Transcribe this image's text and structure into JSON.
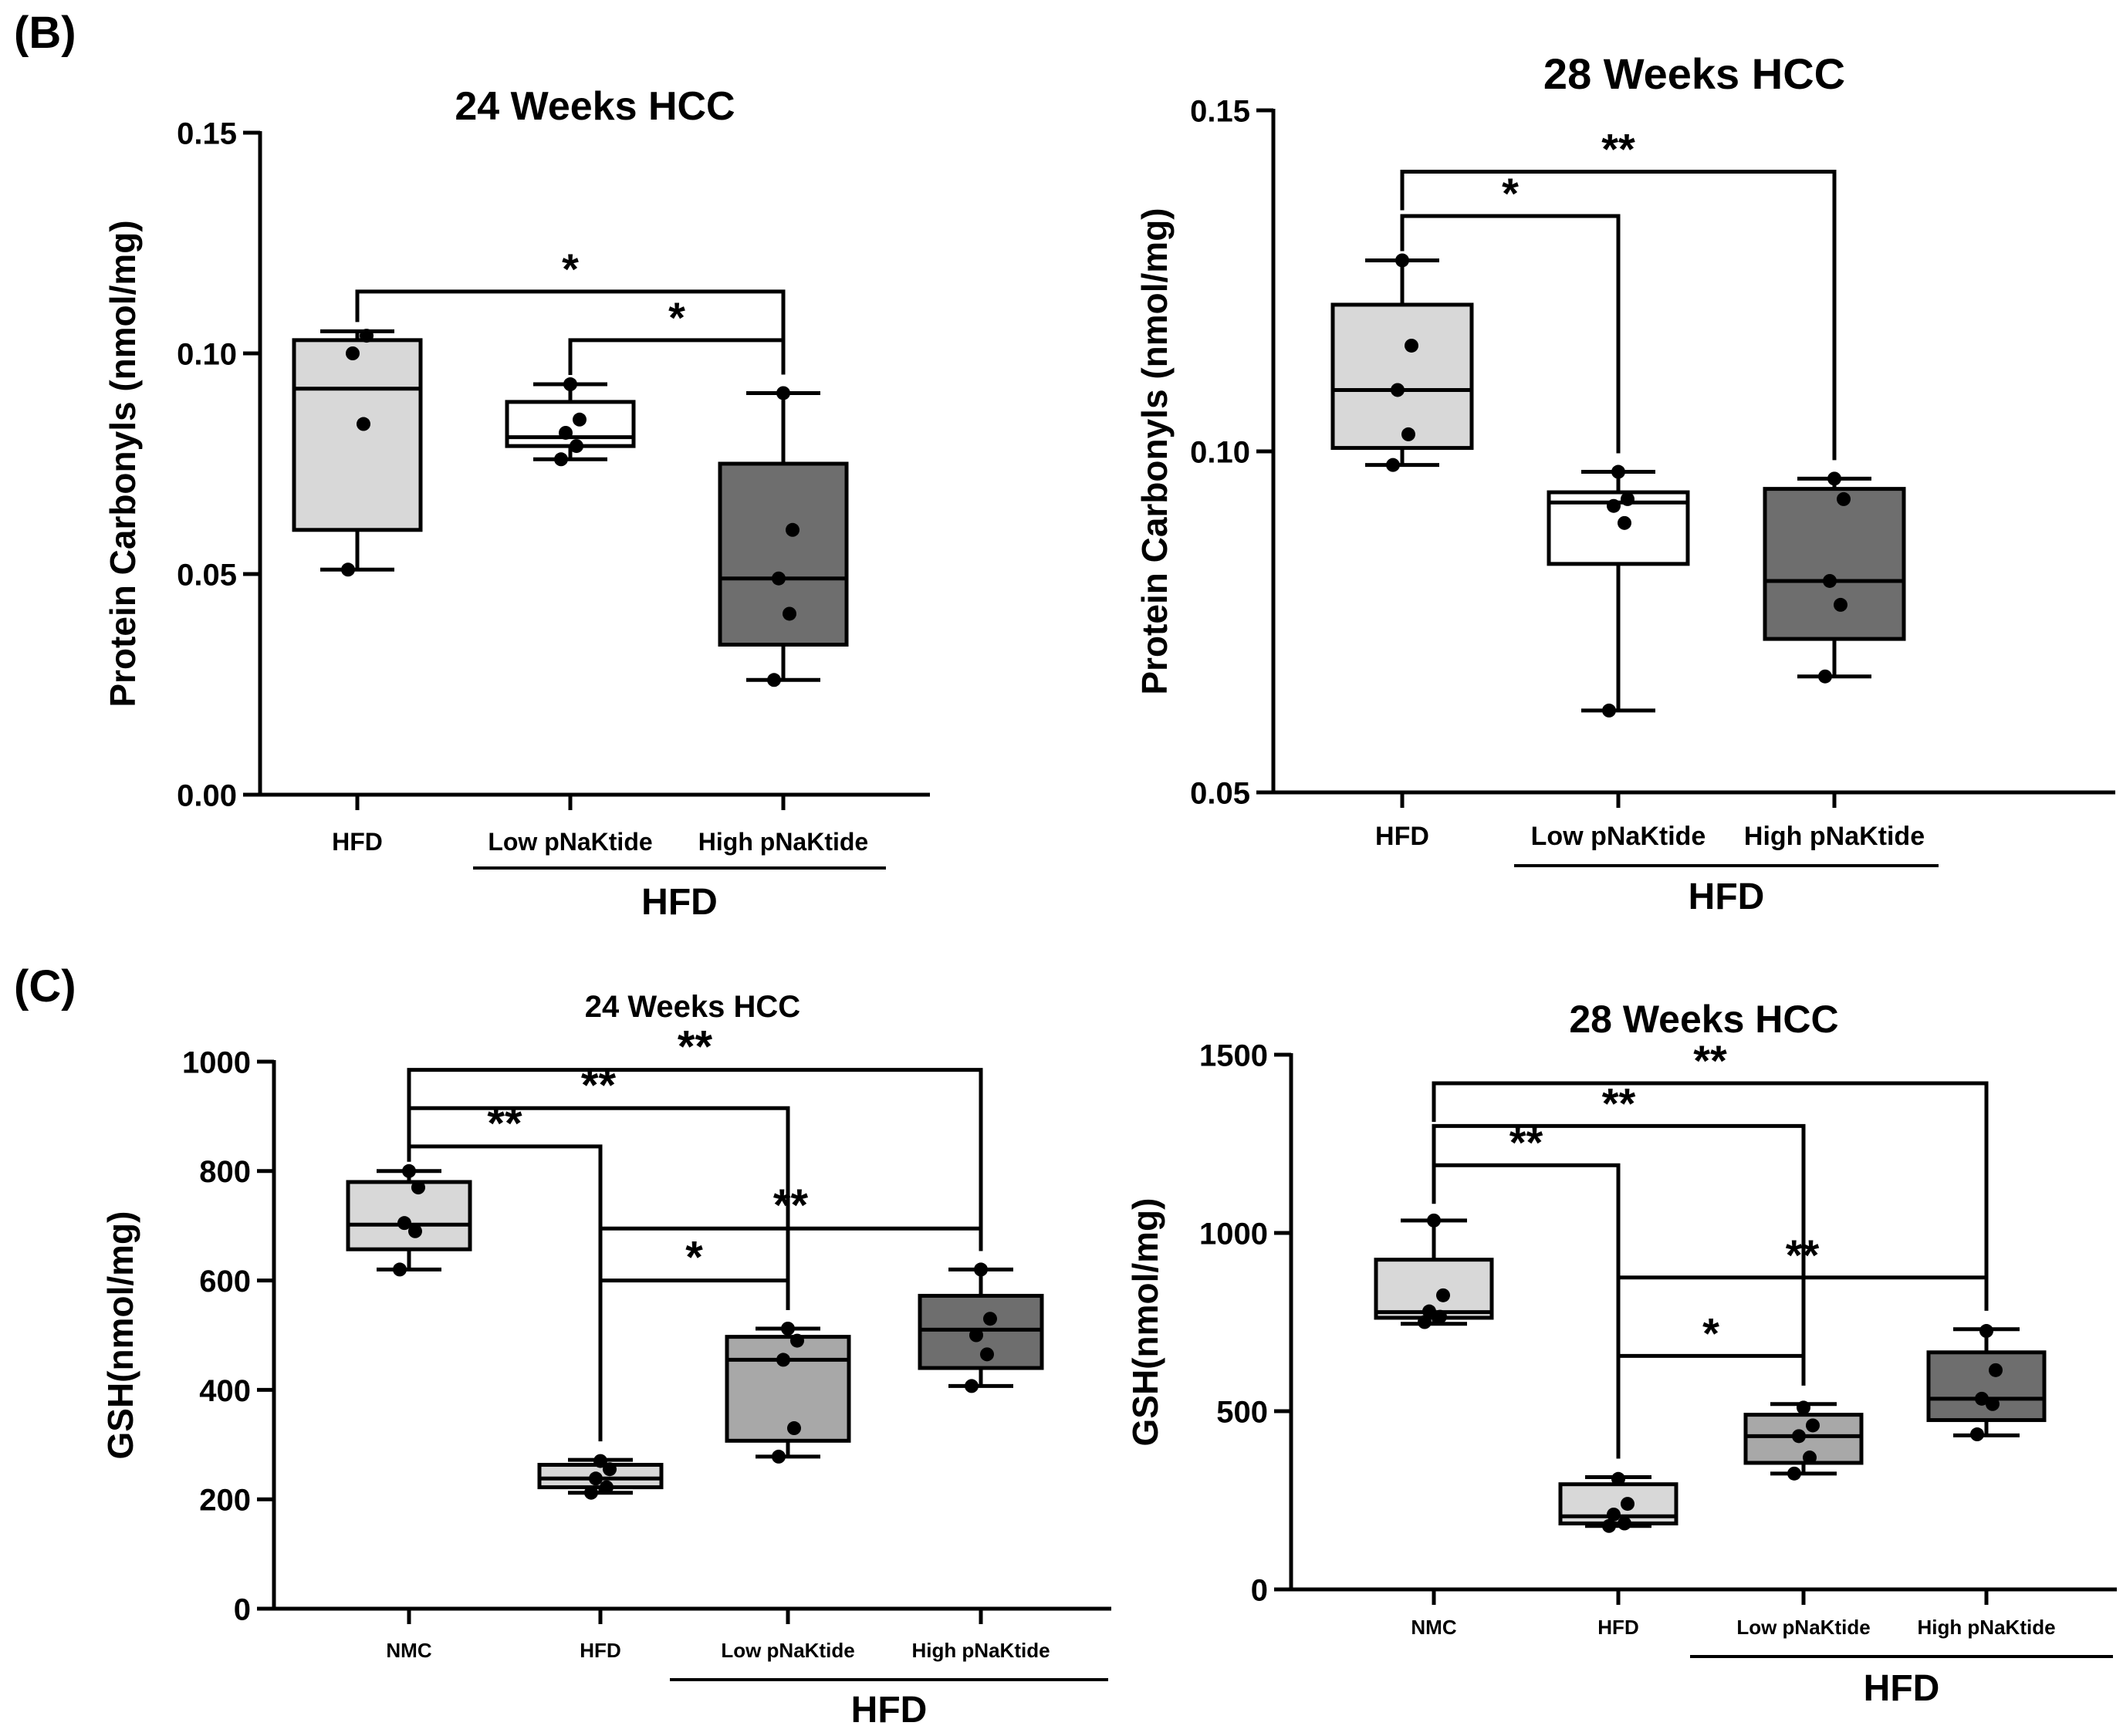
{
  "panels": {
    "b_label": "(B)",
    "c_label": "(C)"
  },
  "colors": {
    "box_light": "#d8d8d8",
    "box_white": "#ffffff",
    "box_mid": "#a8a8a8",
    "box_dark": "#6e6e6e",
    "ink": "#000000"
  },
  "chart_data": [
    {
      "id": "b24",
      "type": "box",
      "title": "24 Weeks HCC",
      "ylabel": "Protein Carbonyls (nmol/mg)",
      "ylim": [
        0,
        0.15
      ],
      "yticks": [
        0,
        0.05,
        0.1,
        0.15
      ],
      "ytick_labels": [
        "0.00",
        "0.05",
        "0.10",
        "0.15"
      ],
      "categories": [
        "HFD",
        "Low pNaKtide",
        "High pNaKtide"
      ],
      "group_label": "HFD",
      "group_span": [
        1,
        2
      ],
      "series": [
        {
          "name": "HFD",
          "fill": "#d8d8d8",
          "min": 0.051,
          "q1": 0.06,
          "median": 0.092,
          "q3": 0.103,
          "max": 0.105,
          "points": [
            0.051,
            0.084,
            0.1,
            0.104
          ]
        },
        {
          "name": "Low pNaKtide",
          "fill": "#ffffff",
          "min": 0.076,
          "q1": 0.079,
          "median": 0.081,
          "q3": 0.089,
          "max": 0.093,
          "points": [
            0.076,
            0.079,
            0.082,
            0.085,
            0.093
          ]
        },
        {
          "name": "High pNaKtide",
          "fill": "#6e6e6e",
          "min": 0.026,
          "q1": 0.034,
          "median": 0.049,
          "q3": 0.075,
          "max": 0.091,
          "points": [
            0.026,
            0.041,
            0.049,
            0.06,
            0.091
          ]
        }
      ],
      "significance": [
        {
          "from": 0,
          "to": 2,
          "label": "*",
          "y": 0.114,
          "drop": 0.004
        },
        {
          "from": 1,
          "to": 2,
          "label": "*",
          "y": 0.103,
          "drop": 0.004
        }
      ]
    },
    {
      "id": "b28",
      "type": "box",
      "title": "28 Weeks HCC",
      "ylabel": "Protein Carbonyls (nmol/mg)",
      "ylim": [
        0.05,
        0.15
      ],
      "yticks": [
        0.05,
        0.1,
        0.15
      ],
      "ytick_labels": [
        "0.05",
        "0.10",
        "0.15"
      ],
      "categories": [
        "HFD",
        "Low pNaKtide",
        "High pNaKtide"
      ],
      "group_label": "HFD",
      "group_span": [
        1,
        2
      ],
      "series": [
        {
          "name": "HFD",
          "fill": "#d8d8d8",
          "min": 0.098,
          "q1": 0.1005,
          "median": 0.109,
          "q3": 0.1215,
          "max": 0.128,
          "points": [
            0.098,
            0.1025,
            0.109,
            0.1155,
            0.128
          ]
        },
        {
          "name": "Low pNaKtide",
          "fill": "#ffffff",
          "min": 0.062,
          "q1": 0.0835,
          "median": 0.0925,
          "q3": 0.094,
          "max": 0.097,
          "points": [
            0.062,
            0.0895,
            0.092,
            0.093,
            0.097
          ]
        },
        {
          "name": "High pNaKtide",
          "fill": "#6e6e6e",
          "min": 0.067,
          "q1": 0.0725,
          "median": 0.081,
          "q3": 0.0945,
          "max": 0.096,
          "points": [
            0.067,
            0.0775,
            0.081,
            0.093,
            0.096
          ]
        }
      ],
      "significance": [
        {
          "from": 0,
          "to": 1,
          "label": "*",
          "y": 0.1345,
          "drop": 0.004
        },
        {
          "from": 0,
          "to": 2,
          "label": "**",
          "y": 0.141,
          "drop": 0.004
        }
      ]
    },
    {
      "id": "c24",
      "type": "box",
      "title": "24 Weeks HCC",
      "ylabel": "GSH(nmol/mg)",
      "ylim": [
        0,
        1000
      ],
      "yticks": [
        0,
        200,
        400,
        600,
        800,
        1000
      ],
      "ytick_labels": [
        "0",
        "200",
        "400",
        "600",
        "800",
        "1000"
      ],
      "categories": [
        "NMC",
        "HFD",
        "Low pNaKtide",
        "High pNaKtide"
      ],
      "group_label": "HFD",
      "group_span": [
        2,
        3
      ],
      "series": [
        {
          "name": "NMC",
          "fill": "#d8d8d8",
          "min": 620,
          "q1": 657,
          "median": 702,
          "q3": 780,
          "max": 800,
          "points": [
            620,
            690,
            705,
            770,
            800
          ]
        },
        {
          "name": "HFD",
          "fill": "#d8d8d8",
          "min": 212,
          "q1": 222,
          "median": 238,
          "q3": 263,
          "max": 272,
          "points": [
            212,
            222,
            238,
            255,
            270
          ]
        },
        {
          "name": "Low pNaKtide",
          "fill": "#a8a8a8",
          "min": 278,
          "q1": 307,
          "median": 455,
          "q3": 497,
          "max": 512,
          "points": [
            278,
            330,
            455,
            490,
            512
          ]
        },
        {
          "name": "High pNaKtide",
          "fill": "#6e6e6e",
          "min": 407,
          "q1": 440,
          "median": 510,
          "q3": 572,
          "max": 620,
          "points": [
            407,
            465,
            500,
            530,
            620
          ]
        }
      ],
      "significance": [
        {
          "from": 0,
          "to": 1,
          "label": "**",
          "y": 845,
          "drop": 30
        },
        {
          "from": 0,
          "to": 2,
          "label": "**",
          "y": 915,
          "drop": 30
        },
        {
          "from": 0,
          "to": 3,
          "label": "**",
          "y": 985,
          "drop": 30
        },
        {
          "from": 1,
          "to": 2,
          "label": "*",
          "y": 600,
          "drop": 30
        },
        {
          "from": 1,
          "to": 3,
          "label": "**",
          "y": 695,
          "drop": 30
        }
      ]
    },
    {
      "id": "c28",
      "type": "box",
      "title": "28 Weeks HCC",
      "ylabel": "GSH(nmol/mg)",
      "ylim": [
        0,
        1500
      ],
      "yticks": [
        0,
        500,
        1000,
        1500
      ],
      "ytick_labels": [
        "0",
        "500",
        "1000",
        "1500"
      ],
      "categories": [
        "NMC",
        "HFD",
        "Low pNaKtide",
        "High pNaKtide"
      ],
      "group_label": "HFD",
      "group_span": [
        2,
        3
      ],
      "series": [
        {
          "name": "NMC",
          "fill": "#d8d8d8",
          "min": 745,
          "q1": 762,
          "median": 778,
          "q3": 925,
          "max": 1035,
          "points": [
            750,
            765,
            780,
            825,
            1035
          ]
        },
        {
          "name": "HFD",
          "fill": "#d8d8d8",
          "min": 178,
          "q1": 185,
          "median": 205,
          "q3": 295,
          "max": 315,
          "points": [
            178,
            185,
            210,
            240,
            310
          ]
        },
        {
          "name": "Low pNaKtide",
          "fill": "#a8a8a8",
          "min": 325,
          "q1": 355,
          "median": 430,
          "q3": 490,
          "max": 520,
          "points": [
            325,
            370,
            430,
            460,
            510
          ]
        },
        {
          "name": "High pNaKtide",
          "fill": "#6e6e6e",
          "min": 432,
          "q1": 475,
          "median": 535,
          "q3": 665,
          "max": 730,
          "points": [
            435,
            520,
            535,
            615,
            725
          ]
        }
      ],
      "significance": [
        {
          "from": 0,
          "to": 1,
          "label": "**",
          "y": 1190,
          "drop": 45
        },
        {
          "from": 0,
          "to": 2,
          "label": "**",
          "y": 1300,
          "drop": 45
        },
        {
          "from": 0,
          "to": 3,
          "label": "**",
          "y": 1420,
          "drop": 45
        },
        {
          "from": 1,
          "to": 2,
          "label": "*",
          "y": 655,
          "drop": 45
        },
        {
          "from": 1,
          "to": 3,
          "label": "**",
          "y": 875,
          "drop": 45
        }
      ]
    }
  ]
}
